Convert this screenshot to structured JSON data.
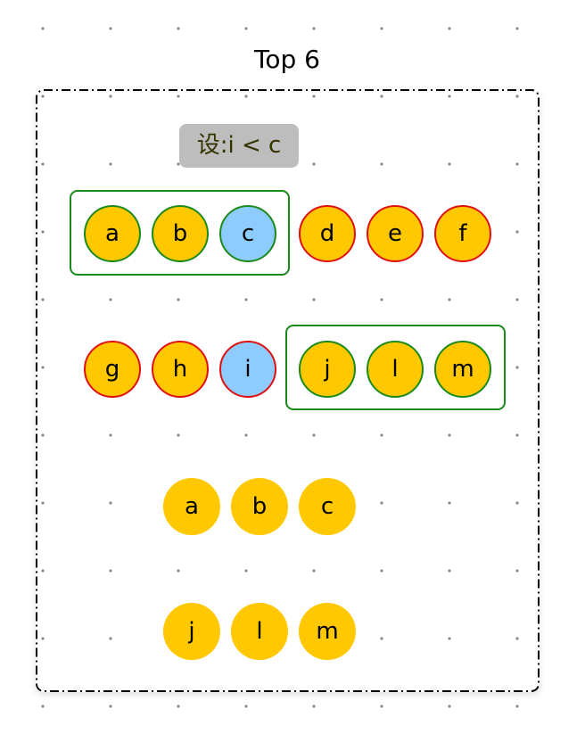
{
  "title": "Top 6",
  "condition_label": "设:i < c",
  "colors": {
    "node_fill": "#ffc800",
    "highlight_fill": "#8ecbff",
    "selected_border": "#1a8a1a",
    "other_border": "#e01010",
    "label_bg": "#bdbdbd"
  },
  "row1": {
    "selected": [
      "a",
      "b",
      "c"
    ],
    "others": [
      "d",
      "e",
      "f"
    ]
  },
  "row2": {
    "others": [
      "g",
      "h",
      "i"
    ],
    "selected": [
      "j",
      "l",
      "m"
    ]
  },
  "result_row1": [
    "a",
    "b",
    "c"
  ],
  "result_row2": [
    "j",
    "l",
    "m"
  ]
}
